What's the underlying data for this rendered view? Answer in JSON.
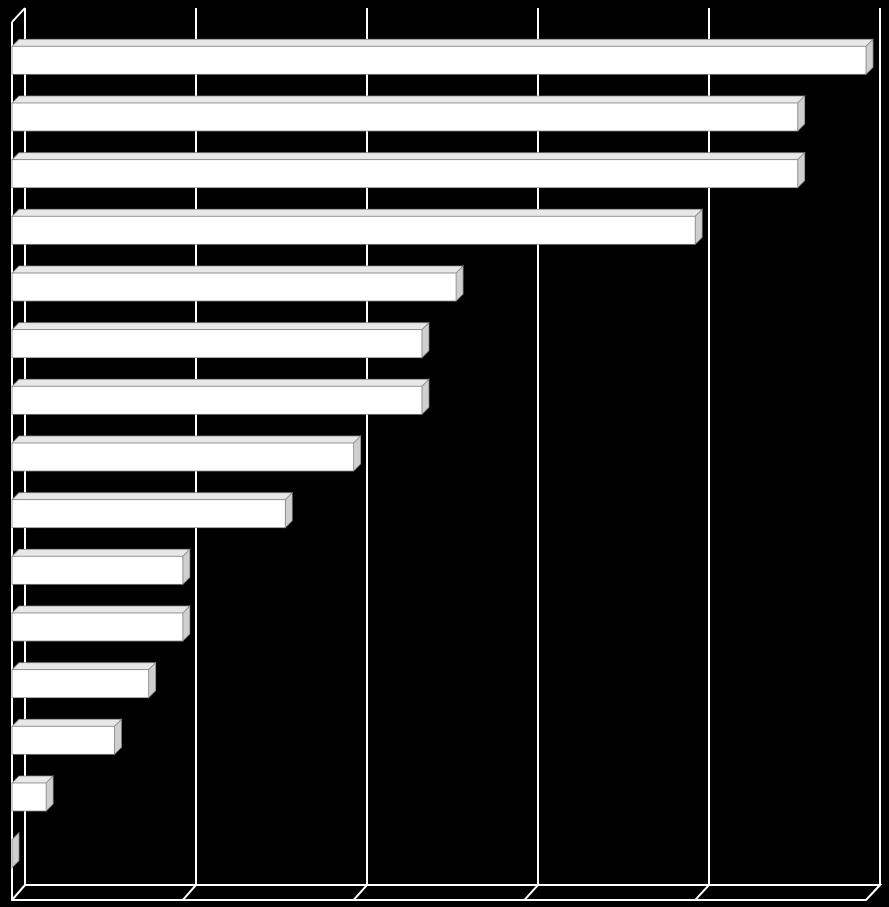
{
  "chart_data": {
    "type": "bar",
    "orientation": "horizontal",
    "categories": [
      null,
      null,
      null,
      null,
      null,
      null,
      null,
      null,
      null,
      null,
      null,
      null,
      null,
      null,
      null
    ],
    "values": [
      25,
      23,
      23,
      20,
      13,
      12,
      12,
      10,
      8,
      5,
      5,
      4,
      3,
      1,
      0
    ],
    "color": "#ffffff",
    "xlim": [
      0,
      25
    ],
    "xticks": [
      0,
      5,
      10,
      15,
      20,
      25
    ],
    "grid": true
  }
}
